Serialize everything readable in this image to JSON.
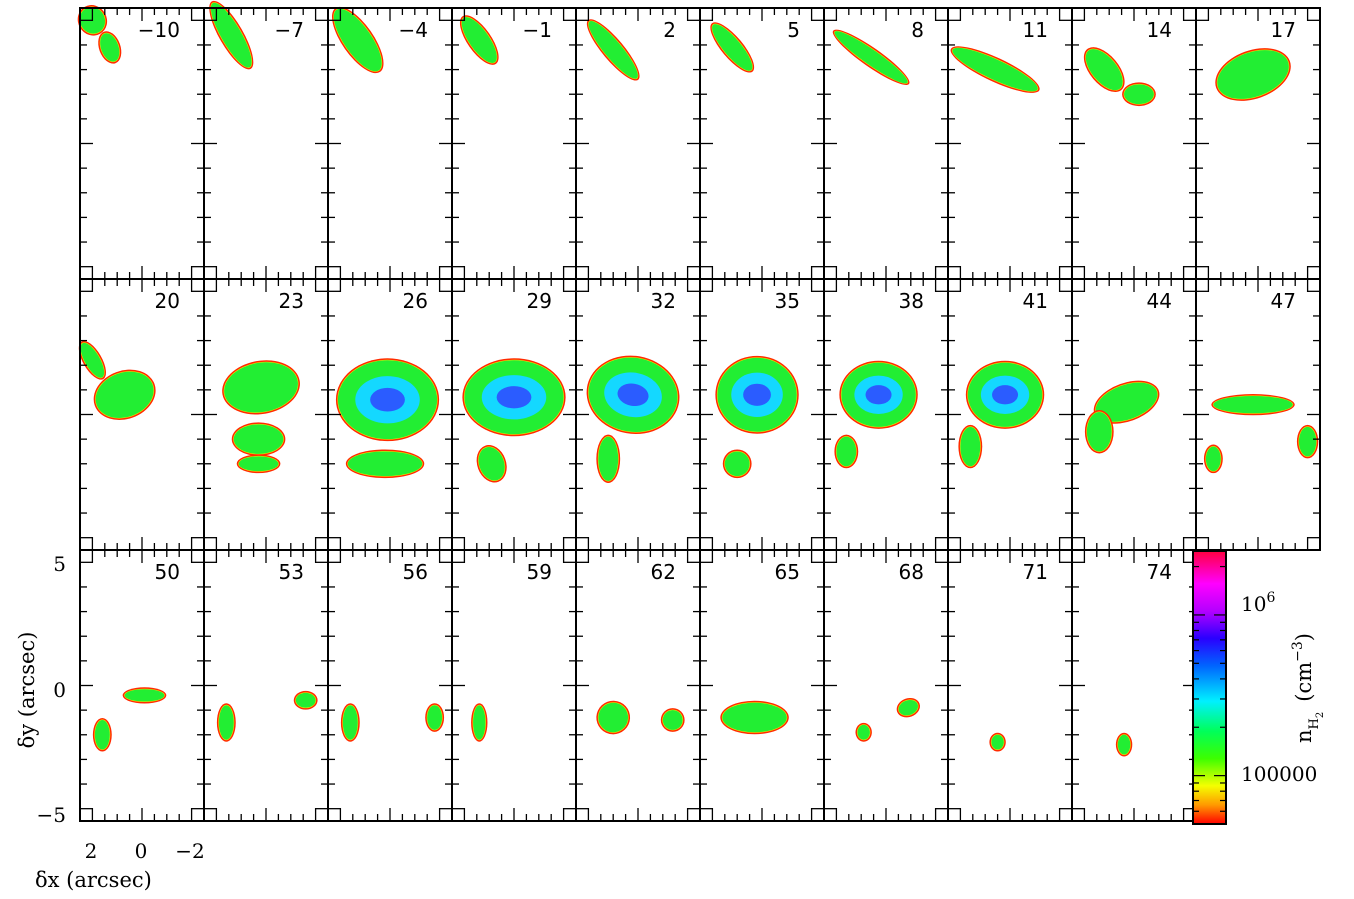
{
  "chart_data": {
    "type": "heatmap",
    "panel_grid": {
      "rows": 3,
      "cols": 10
    },
    "panel_labels": [
      "−10",
      "−7",
      "−4",
      "−1",
      "2",
      "5",
      "8",
      "11",
      "14",
      "17",
      "20",
      "23",
      "26",
      "29",
      "32",
      "35",
      "38",
      "41",
      "44",
      "47",
      "50",
      "53",
      "56",
      "59",
      "62",
      "65",
      "68",
      "71",
      "74"
    ],
    "xlabel": "δx (arcsec)",
    "ylabel": "δy (arcsec)",
    "x_ticklabels": [
      "2",
      "0",
      "−2"
    ],
    "y_ticklabels": [
      "5",
      "0",
      "−5"
    ],
    "xlim": [
      2.5,
      -2.5
    ],
    "ylim": [
      -5.5,
      5.5
    ],
    "colorbar": {
      "label_main": "n",
      "label_sub1": "H",
      "label_sub2": "2",
      "label_unit": "(cm",
      "label_unit_exp": "−3",
      "label_unit_close": ")",
      "tick_100000": "100000",
      "tick_1e6_base": "10",
      "tick_1e6_exp": "6",
      "scale": "log",
      "range": [
        50000,
        2500000
      ]
    }
  }
}
